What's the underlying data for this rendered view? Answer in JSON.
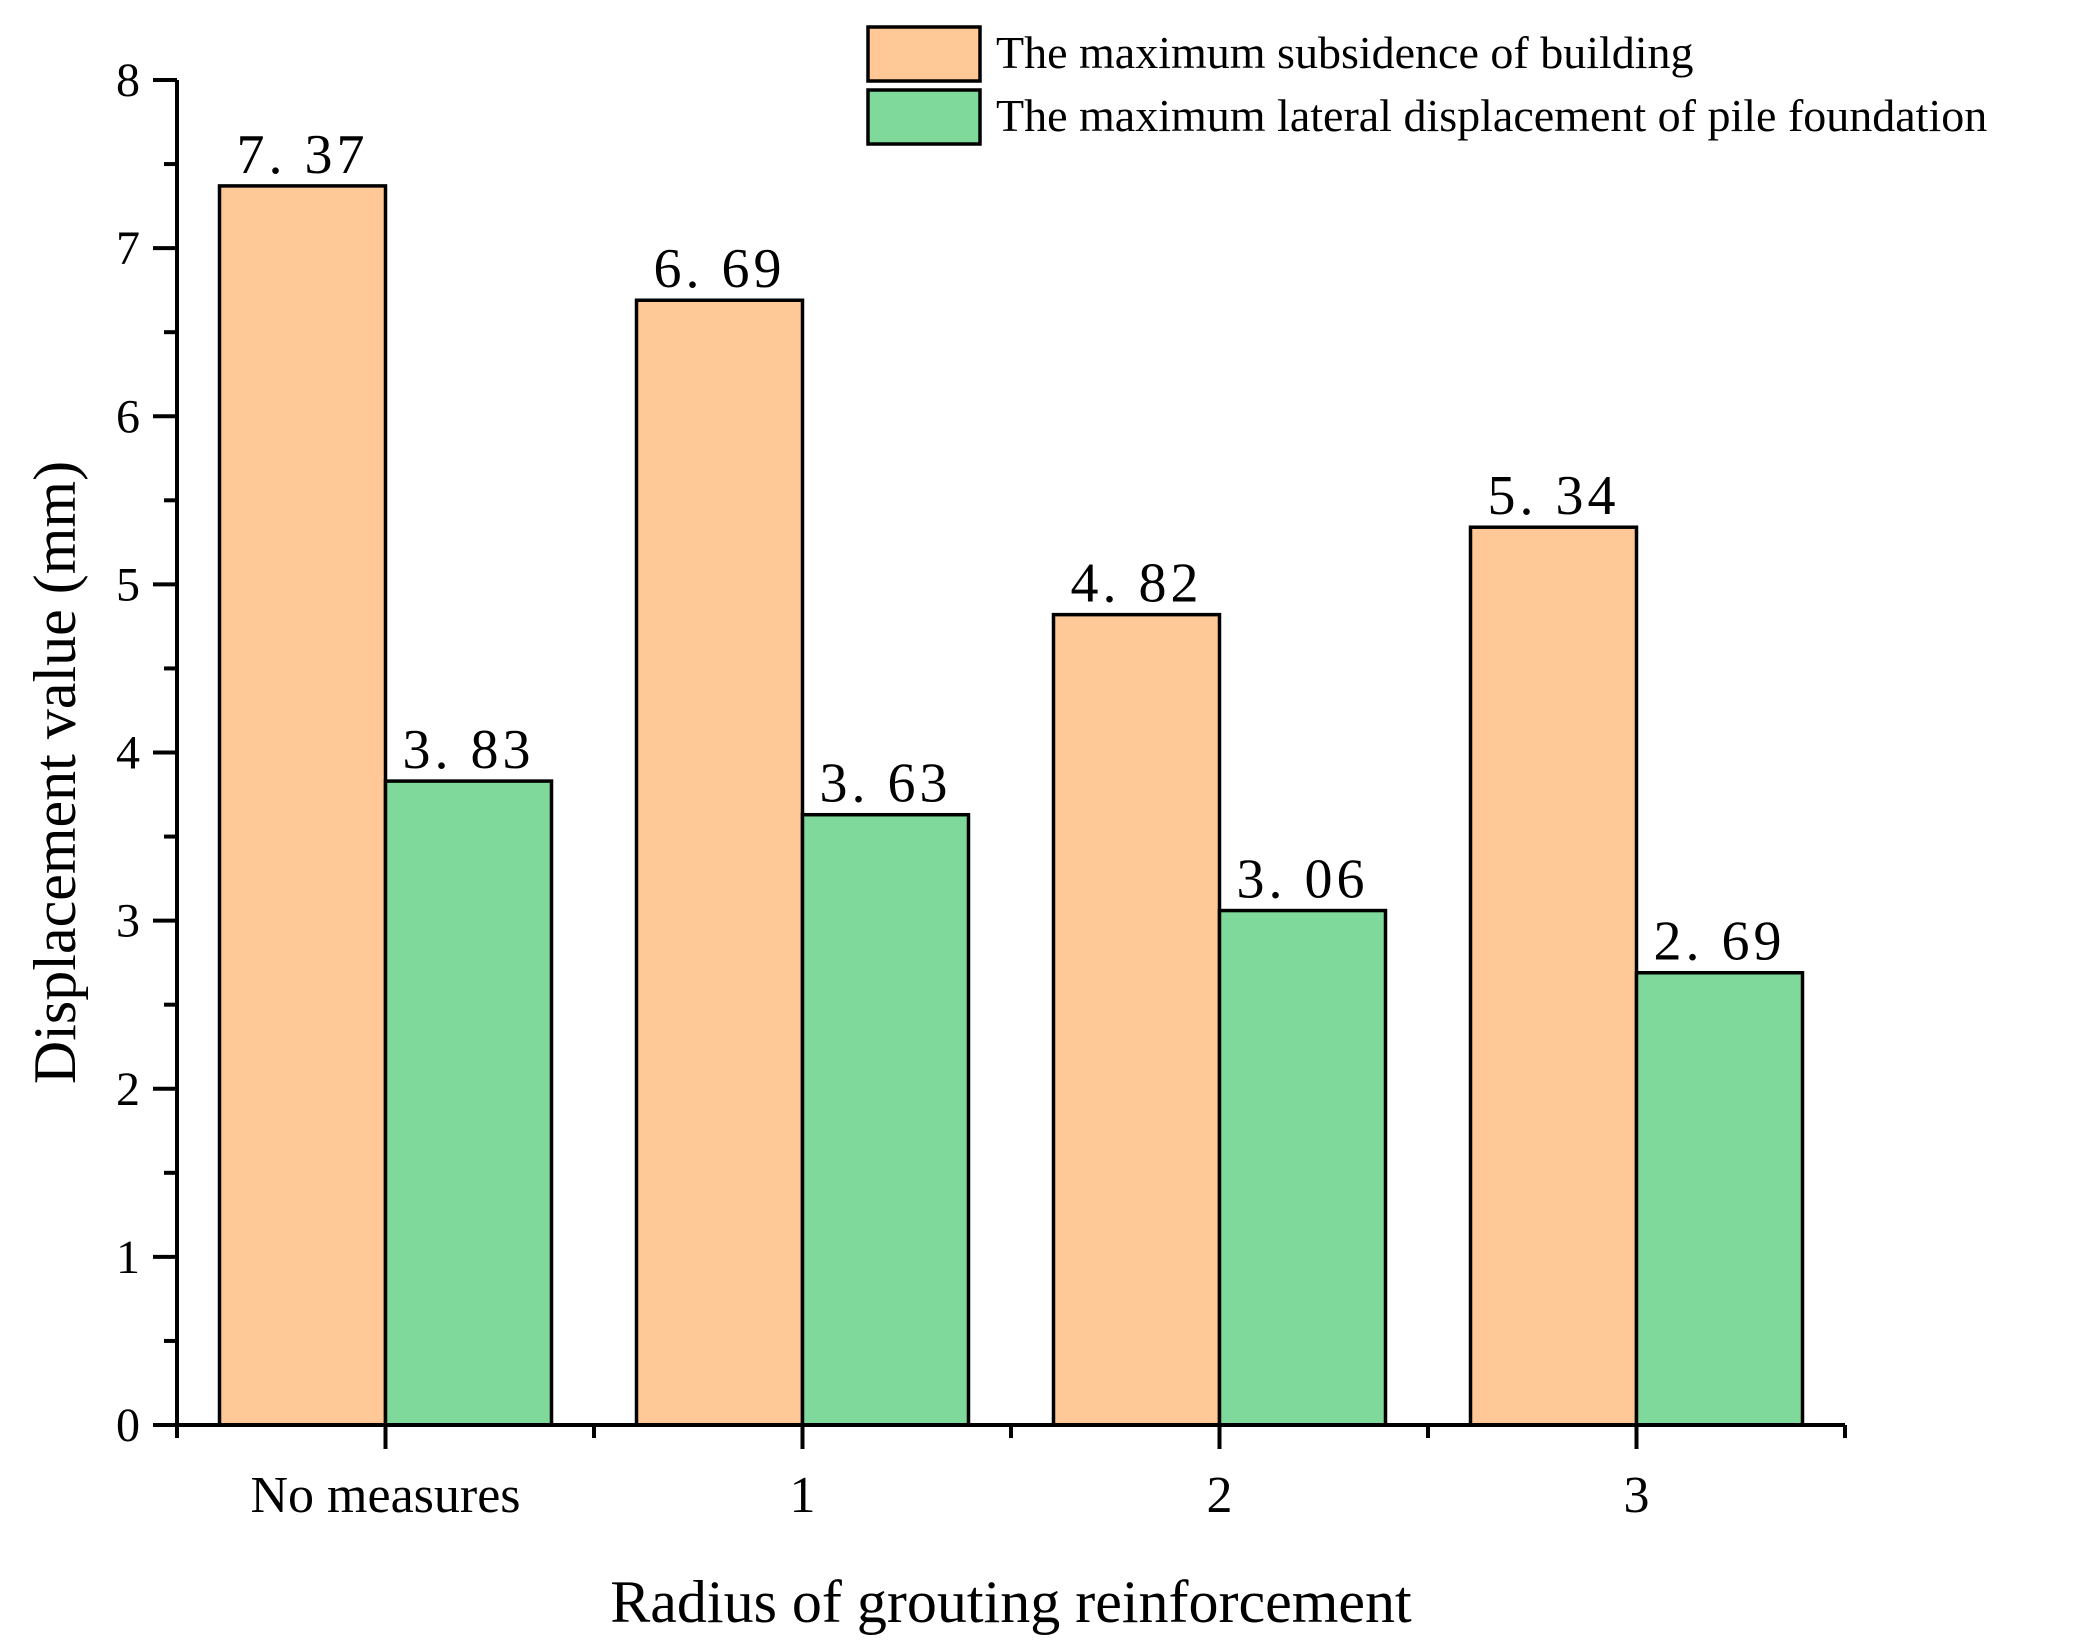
{
  "chart_data": {
    "type": "bar",
    "title": "",
    "xlabel": "Radius of grouting reinforcement",
    "ylabel": "Displacement value (mm)",
    "categories": [
      "No measures",
      "1",
      "2",
      "3"
    ],
    "ylim": [
      0,
      8
    ],
    "yticks": [
      "0",
      "1",
      "2",
      "3",
      "4",
      "5",
      "6",
      "7",
      "8"
    ],
    "legend_position": "top-right",
    "grid": false,
    "series": [
      {
        "name": "The maximum subsidence of building",
        "color": "#FFC896",
        "values": [
          7.37,
          6.69,
          4.82,
          5.34
        ],
        "labels": [
          "7. 37",
          "6. 69",
          "4. 82",
          "5. 34"
        ]
      },
      {
        "name": "The maximum lateral displacement of pile foundation",
        "color": "#7FD99A",
        "values": [
          3.83,
          3.63,
          3.06,
          2.69
        ],
        "labels": [
          "3. 83",
          "3. 63",
          "3. 06",
          "2. 69"
        ]
      }
    ]
  }
}
